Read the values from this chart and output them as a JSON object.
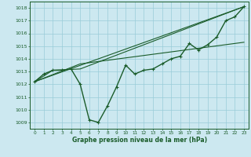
{
  "xlabel": "Graphe pression niveau de la mer (hPa)",
  "bg_color": "#cce8f0",
  "grid_color": "#99ccd9",
  "line_color": "#1a5c2a",
  "ylim": [
    1008.5,
    1018.5
  ],
  "xlim": [
    -0.5,
    23.5
  ],
  "yticks": [
    1009,
    1010,
    1011,
    1012,
    1013,
    1014,
    1015,
    1016,
    1017,
    1018
  ],
  "xticks": [
    0,
    1,
    2,
    3,
    4,
    5,
    6,
    7,
    8,
    9,
    10,
    11,
    12,
    13,
    14,
    15,
    16,
    17,
    18,
    19,
    20,
    21,
    22,
    23
  ],
  "line1_x": [
    0,
    1,
    2,
    3,
    4,
    5,
    6,
    7,
    8,
    9,
    10,
    11,
    12,
    13,
    14,
    15,
    16,
    17,
    18,
    19,
    20,
    21,
    22,
    23
  ],
  "line1_y": [
    1012.2,
    1012.8,
    1013.1,
    1013.1,
    1013.2,
    1012.0,
    1009.2,
    1009.0,
    1010.3,
    1011.8,
    1013.5,
    1012.8,
    1013.1,
    1013.2,
    1013.6,
    1014.0,
    1014.2,
    1015.2,
    1014.7,
    1015.1,
    1015.7,
    1017.0,
    1017.3,
    1018.1
  ],
  "line2_x": [
    0,
    23
  ],
  "line2_y": [
    1012.2,
    1018.1
  ],
  "line3_x": [
    0,
    2,
    5,
    23
  ],
  "line3_y": [
    1012.2,
    1013.1,
    1013.2,
    1018.1
  ],
  "line4_x": [
    0,
    5,
    23
  ],
  "line4_y": [
    1012.2,
    1013.6,
    1015.3
  ]
}
